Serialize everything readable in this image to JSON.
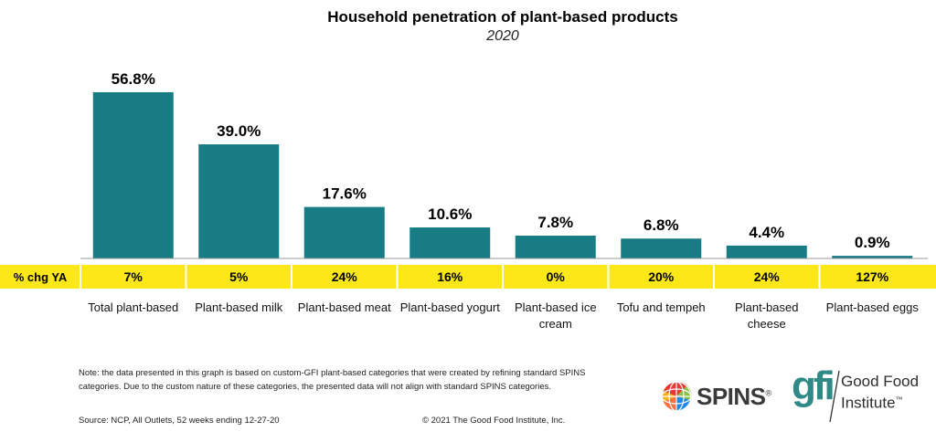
{
  "chart_data": {
    "type": "bar",
    "title": "Household penetration of plant-based products",
    "subtitle": "2020",
    "categories": [
      "Total plant-based",
      "Plant-based milk",
      "Plant-based meat",
      "Plant-based yogurt",
      "Plant-based ice cream",
      "Tofu and tempeh",
      "Plant-based cheese",
      "Plant-based eggs"
    ],
    "values": [
      56.8,
      39.0,
      17.6,
      10.6,
      7.8,
      6.8,
      4.4,
      0.9
    ],
    "value_labels": [
      "56.8%",
      "39.0%",
      "17.6%",
      "10.6%",
      "7.8%",
      "6.8%",
      "4.4%",
      "0.9%"
    ],
    "ylim": [
      0,
      60
    ],
    "xlabel": "",
    "ylabel": "",
    "grid": false,
    "bar_color": "#177c84",
    "change_row": {
      "label": "% chg YA",
      "values": [
        "7%",
        "5%",
        "24%",
        "16%",
        "0%",
        "20%",
        "24%",
        "127%"
      ],
      "background": "#fce819"
    }
  },
  "footer": {
    "note": "Note: the data presented in this graph is based on custom-GFI plant-based categories that were created by refining standard SPINS categories. Due to the custom nature of these categories, the presented data will not align with standard SPINS categories.",
    "source": "Source: NCP, All Outlets, 52 weeks ending 12-27-20",
    "copyright": "© 2021 The Good Food Institute, Inc."
  },
  "logos": {
    "spins": {
      "text": "SPINS",
      "mark": "®",
      "icon": "globe-icon"
    },
    "gfi": {
      "letters": "gfi",
      "name_line1": "Good Food",
      "name_line2": "Institute",
      "mark": "™",
      "color": "#2f8a87"
    }
  }
}
